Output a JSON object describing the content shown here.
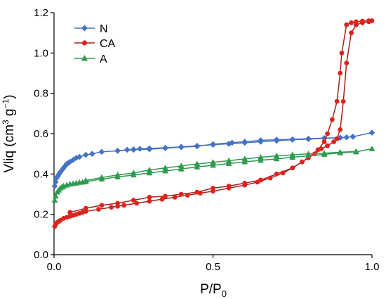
{
  "chart_data": {
    "type": "line",
    "xlabel": {
      "main": "P/P",
      "sub": "0"
    },
    "ylabel": {
      "pre": "Vliq (cm",
      "sup1": "3",
      "mid": " g",
      "sup2": "−1",
      "post": ")"
    },
    "xlim": [
      0,
      1
    ],
    "ylim": [
      0,
      1.2
    ],
    "x_ticks": [
      "0.0",
      "0.5",
      "1.0"
    ],
    "y_ticks": [
      "0.0",
      "0.2",
      "0.4",
      "0.6",
      "0.8",
      "1.0",
      "1.2"
    ],
    "x_tick_values": [
      0,
      0.5,
      1
    ],
    "y_tick_values": [
      0,
      0.2,
      0.4,
      0.6,
      0.8,
      1.0,
      1.2
    ],
    "grid": false,
    "legend_position": "top-left",
    "series": [
      {
        "name": "N",
        "color": "#4472C4",
        "marker": "diamond",
        "branches": [
          {
            "x": [
              0.002,
              0.005,
              0.008,
              0.012,
              0.016,
              0.02,
              0.025,
              0.03,
              0.035,
              0.04,
              0.045,
              0.05,
              0.06,
              0.07,
              0.08,
              0.1,
              0.12,
              0.15,
              0.2,
              0.23,
              0.25,
              0.27,
              0.3,
              0.35,
              0.4,
              0.45,
              0.5,
              0.55,
              0.6,
              0.65,
              0.7,
              0.75,
              0.8,
              0.85,
              0.9,
              0.92,
              0.94,
              1.0
            ],
            "y": [
              0.34,
              0.36,
              0.38,
              0.39,
              0.4,
              0.41,
              0.42,
              0.43,
              0.44,
              0.45,
              0.455,
              0.46,
              0.47,
              0.48,
              0.485,
              0.495,
              0.5,
              0.51,
              0.515,
              0.52,
              0.522,
              0.525,
              0.527,
              0.53,
              0.535,
              0.54,
              0.545,
              0.55,
              0.555,
              0.56,
              0.565,
              0.57,
              0.573,
              0.577,
              0.58,
              0.582,
              0.585,
              0.605
            ]
          },
          {
            "x": [
              0.94,
              0.9,
              0.85,
              0.8,
              0.75,
              0.7,
              0.65,
              0.6,
              0.56,
              0.5,
              0.45,
              0.4,
              0.35,
              0.3,
              0.25,
              0.2
            ],
            "y": [
              0.585,
              0.58,
              0.578,
              0.575,
              0.572,
              0.57,
              0.567,
              0.56,
              0.555,
              0.548,
              0.537,
              0.533,
              0.528,
              0.523,
              0.52,
              0.515
            ]
          }
        ]
      },
      {
        "name": "CA",
        "color": "#A8201A",
        "marker_color": "#E0221E",
        "marker": "circle",
        "branches": [
          {
            "x": [
              0.002,
              0.005,
              0.01,
              0.015,
              0.02,
              0.03,
              0.04,
              0.05,
              0.06,
              0.07,
              0.08,
              0.09,
              0.1,
              0.14,
              0.18,
              0.2,
              0.22,
              0.26,
              0.3,
              0.34,
              0.38,
              0.42,
              0.46,
              0.5,
              0.55,
              0.6,
              0.64,
              0.68,
              0.72,
              0.75,
              0.78,
              0.8,
              0.82,
              0.84,
              0.86,
              0.88,
              0.89,
              0.9,
              0.91,
              0.92,
              0.935,
              0.95,
              0.97,
              0.99,
              1.0
            ],
            "y": [
              0.14,
              0.15,
              0.16,
              0.165,
              0.17,
              0.18,
              0.185,
              0.19,
              0.195,
              0.2,
              0.205,
              0.21,
              0.215,
              0.225,
              0.235,
              0.24,
              0.245,
              0.255,
              0.265,
              0.275,
              0.285,
              0.295,
              0.305,
              0.315,
              0.33,
              0.345,
              0.36,
              0.38,
              0.405,
              0.43,
              0.46,
              0.48,
              0.5,
              0.525,
              0.54,
              0.56,
              0.575,
              0.62,
              0.76,
              0.95,
              1.1,
              1.14,
              1.15,
              1.155,
              1.16
            ]
          },
          {
            "x": [
              0.99,
              0.97,
              0.95,
              0.935,
              0.92,
              0.905,
              0.9,
              0.89,
              0.875,
              0.86,
              0.85,
              0.83,
              0.8,
              0.78,
              0.75,
              0.7,
              0.65,
              0.6,
              0.55,
              0.5,
              0.45,
              0.4,
              0.35,
              0.3,
              0.25,
              0.2,
              0.15,
              0.1,
              0.05
            ],
            "y": [
              1.16,
              1.158,
              1.155,
              1.15,
              1.14,
              1.0,
              0.9,
              0.76,
              0.67,
              0.6,
              0.56,
              0.52,
              0.48,
              0.46,
              0.43,
              0.4,
              0.37,
              0.355,
              0.34,
              0.33,
              0.31,
              0.3,
              0.29,
              0.285,
              0.27,
              0.255,
              0.245,
              0.23,
              0.21
            ]
          }
        ]
      },
      {
        "name": "A",
        "color": "#2E9B4E",
        "marker": "triangle",
        "branches": [
          {
            "x": [
              0.002,
              0.005,
              0.01,
              0.015,
              0.02,
              0.025,
              0.03,
              0.04,
              0.05,
              0.06,
              0.07,
              0.08,
              0.09,
              0.1,
              0.15,
              0.2,
              0.25,
              0.3,
              0.35,
              0.4,
              0.45,
              0.5,
              0.55,
              0.6,
              0.65,
              0.7,
              0.75,
              0.8,
              0.85,
              0.9,
              0.95,
              1.0
            ],
            "y": [
              0.27,
              0.29,
              0.31,
              0.32,
              0.33,
              0.335,
              0.34,
              0.345,
              0.35,
              0.352,
              0.355,
              0.358,
              0.36,
              0.362,
              0.375,
              0.385,
              0.395,
              0.405,
              0.415,
              0.425,
              0.435,
              0.443,
              0.452,
              0.46,
              0.468,
              0.475,
              0.483,
              0.49,
              0.497,
              0.505,
              0.51,
              0.525
            ]
          },
          {
            "x": [
              0.95,
              0.9,
              0.85,
              0.8,
              0.75,
              0.7,
              0.65,
              0.6,
              0.55,
              0.5,
              0.45,
              0.4,
              0.35,
              0.3,
              0.25,
              0.2,
              0.15,
              0.1
            ],
            "y": [
              0.512,
              0.508,
              0.503,
              0.5,
              0.495,
              0.49,
              0.483,
              0.475,
              0.466,
              0.458,
              0.45,
              0.44,
              0.43,
              0.42,
              0.405,
              0.395,
              0.383,
              0.368
            ]
          }
        ]
      }
    ]
  }
}
